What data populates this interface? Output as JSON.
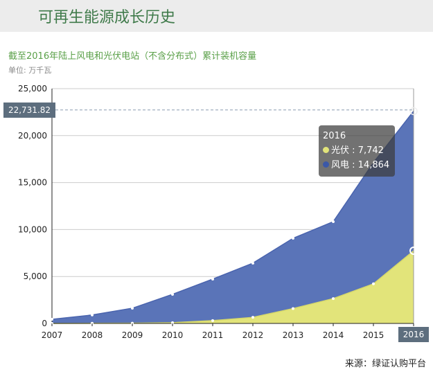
{
  "header": {
    "title": "可再生能源成长历史"
  },
  "source": "来源：绿证认购平台",
  "chart_data": {
    "type": "area",
    "stacked": true,
    "title": "截至2016年陆上风电和光伏电站（不含分布式）累计装机容量",
    "unit_label": "单位: 万千瓦",
    "categories": [
      "2007",
      "2008",
      "2009",
      "2010",
      "2011",
      "2012",
      "2013",
      "2014",
      "2015",
      "2016"
    ],
    "series": [
      {
        "name": "光伏",
        "color": "#e2e47a",
        "values": [
          2,
          14,
          30,
          80,
          300,
          650,
          1590,
          2650,
          4220,
          7742
        ]
      },
      {
        "name": "风电",
        "color": "#5a74b8",
        "values": [
          438,
          886,
          1590,
          3020,
          4420,
          5770,
          7480,
          8190,
          12900,
          14864
        ]
      }
    ],
    "ylim": [
      0,
      25000
    ],
    "yticks": [
      "0",
      "5,000",
      "10,000",
      "15,000",
      "20,000",
      "25,000"
    ],
    "ytick_values": [
      0,
      5000,
      10000,
      15000,
      20000,
      25000
    ],
    "grid": true,
    "crosshair": {
      "y_value": 22731.82,
      "y_label": "22,731.82",
      "x_label": "2016"
    },
    "tooltip": {
      "title": "2016",
      "rows": [
        {
          "name": "光伏",
          "value": "7,742",
          "color": "#e2e47a"
        },
        {
          "name": "风电",
          "value": "14,864",
          "color": "#3b58a8"
        }
      ]
    }
  }
}
